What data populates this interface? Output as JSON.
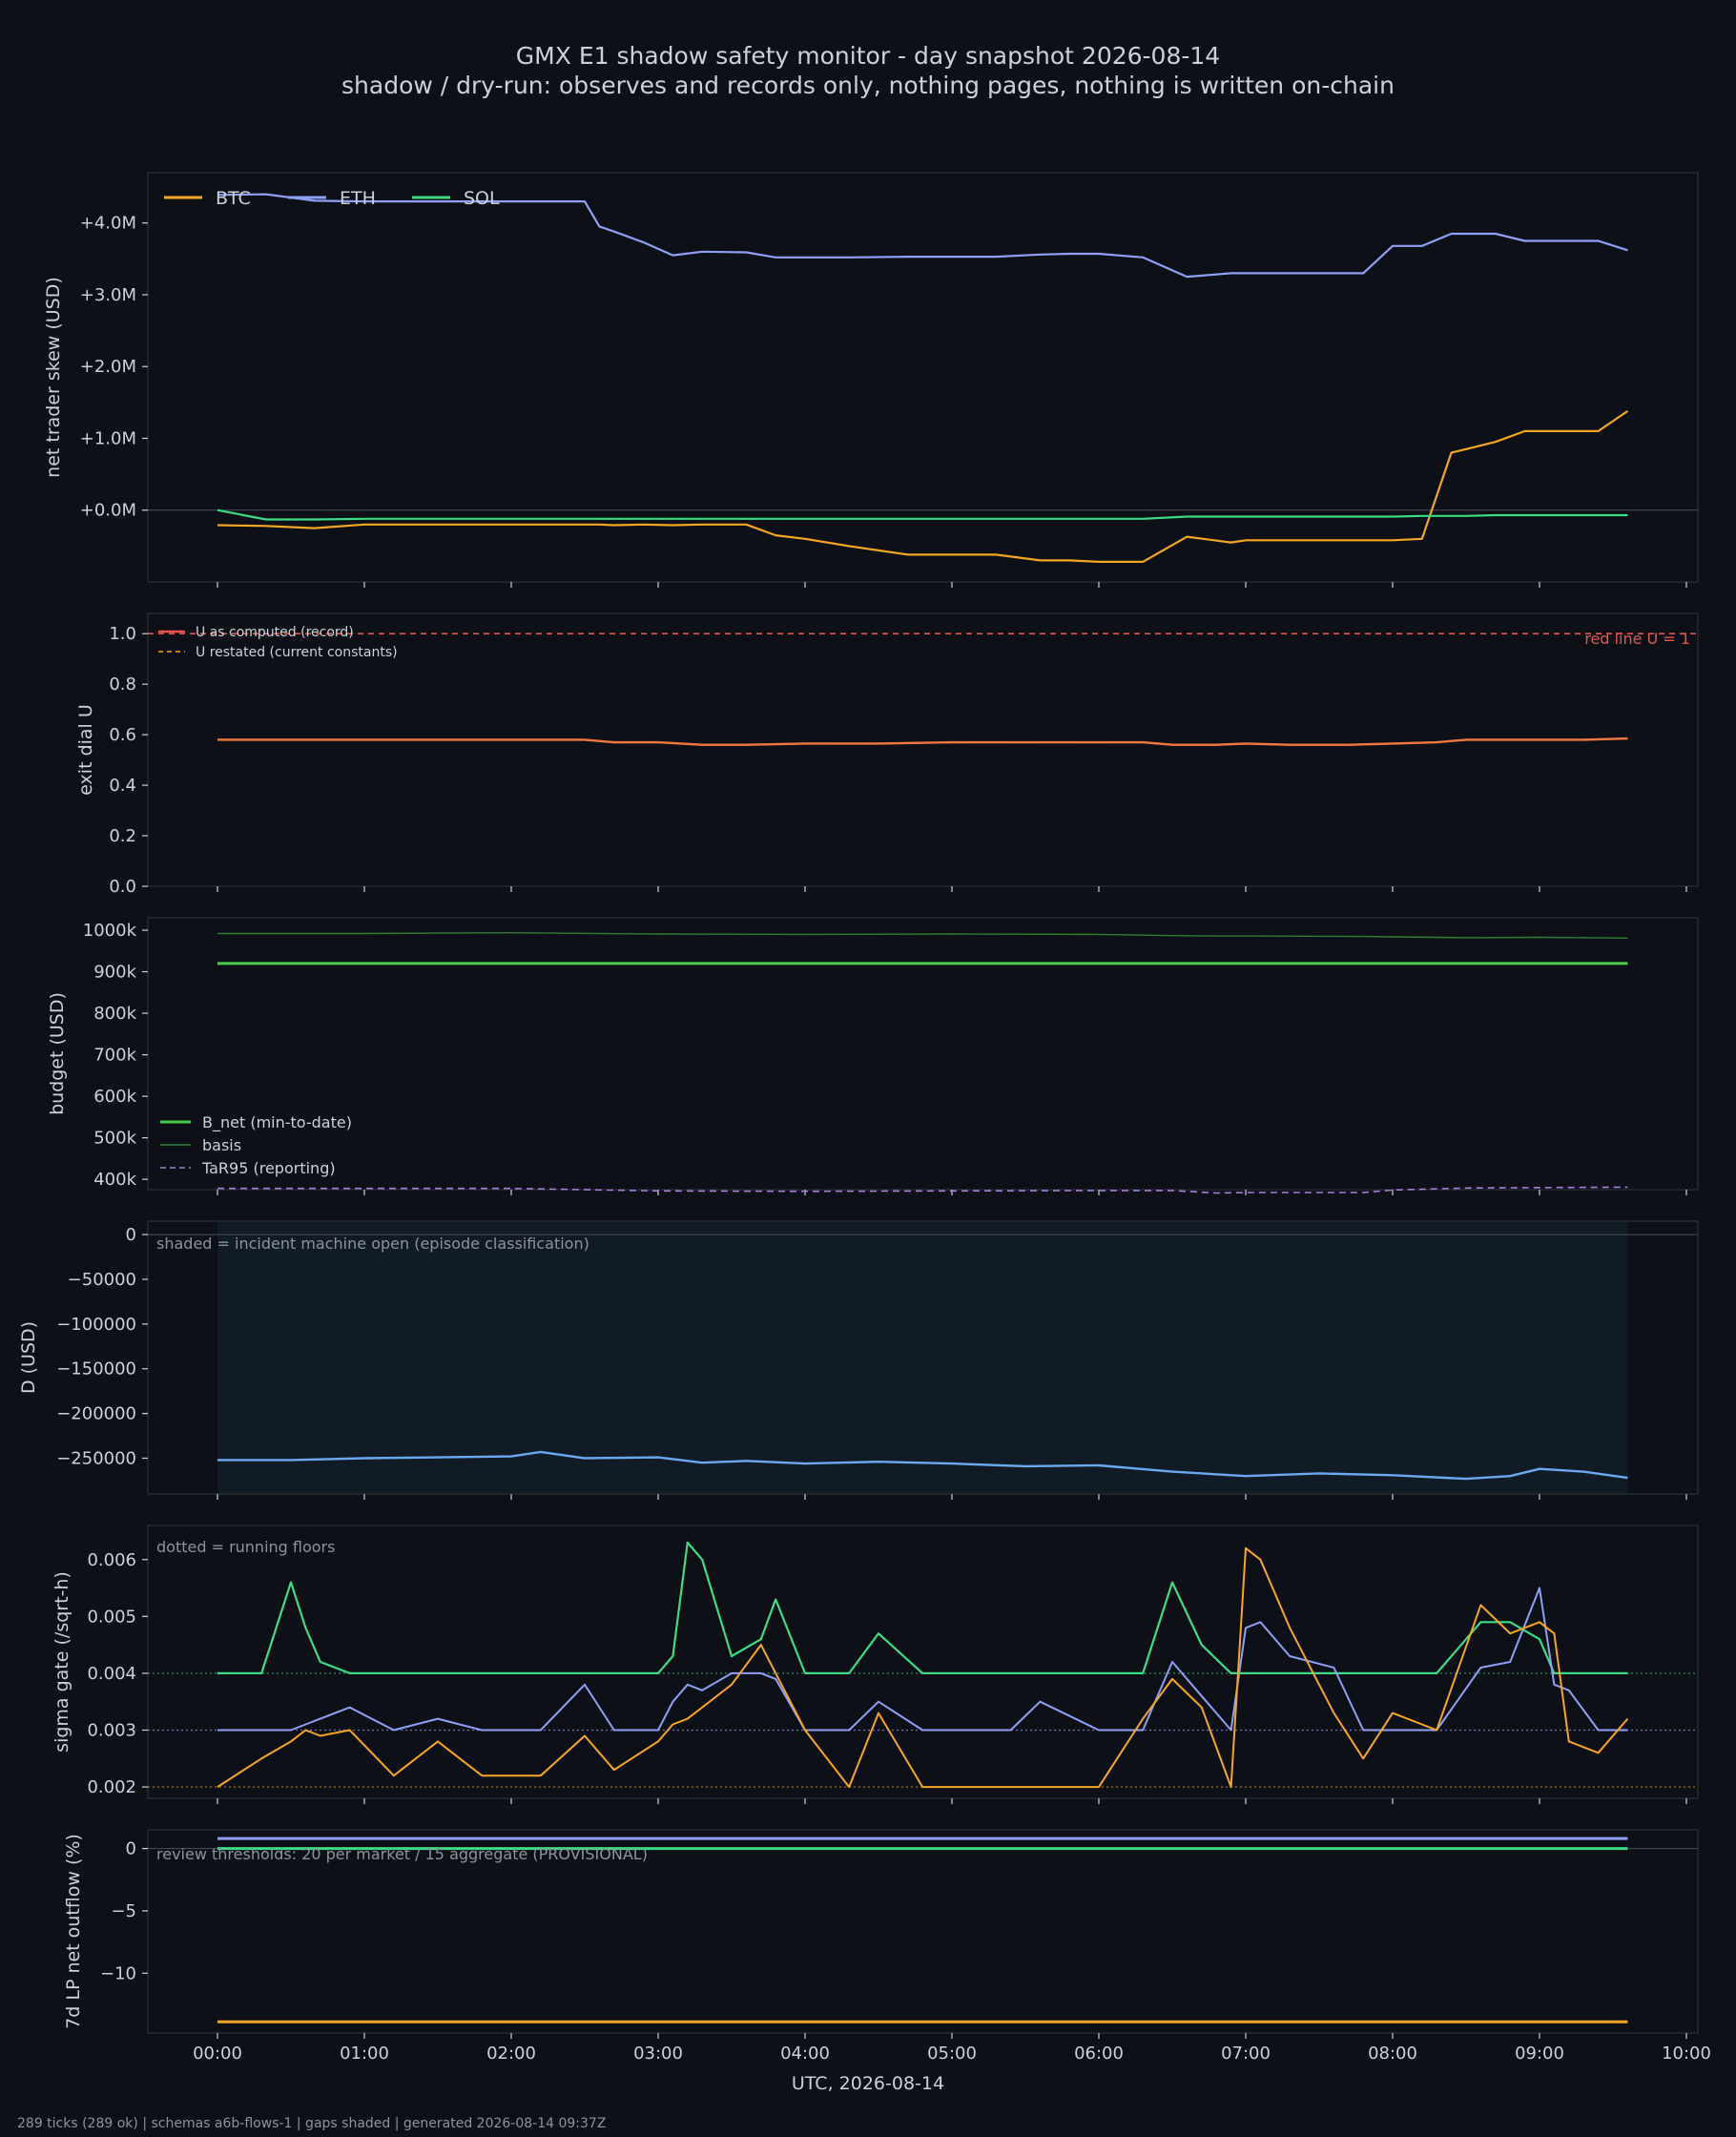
{
  "title": "GMX E1 shadow safety monitor - day snapshot 2026-08-14",
  "subtitle": "shadow / dry-run: observes and records only, nothing pages, nothing is written on-chain",
  "xlabel": "UTC, 2026-08-14",
  "footer": "289 ticks (289 ok) | schemas a6b-flows-1 | gaps shaded | generated 2026-08-14 09:37Z",
  "x_ticks": [
    "00:00",
    "01:00",
    "02:00",
    "03:00",
    "04:00",
    "05:00",
    "06:00",
    "07:00",
    "08:00",
    "09:00",
    "10:00"
  ],
  "colors": {
    "background": "#0d1117",
    "btc": "#f5a623",
    "eth": "#8f9ff5",
    "sol": "#3ddc84",
    "red": "#e5534b",
    "bnet": "#4ccc4c",
    "basis": "#2e7d32",
    "tar": "#a57fd8",
    "d": "#6aa9f0"
  },
  "chart_data": [
    {
      "type": "line",
      "ylabel": "net trader skew (USD)",
      "y_ticks": [
        "+0.0M",
        "+1.0M",
        "+2.0M",
        "+3.0M",
        "+4.0M"
      ],
      "ylim": [
        -1.0,
        4.7
      ],
      "legend": "top-left",
      "x_hours": [
        0.0,
        0.33,
        0.66,
        1.0,
        1.5,
        2.0,
        2.5,
        2.6,
        2.7,
        2.9,
        3.1,
        3.3,
        3.6,
        3.8,
        4.0,
        4.3,
        4.7,
        5.0,
        5.3,
        5.6,
        5.8,
        6.0,
        6.3,
        6.6,
        6.9,
        7.0,
        7.3,
        7.6,
        7.8,
        8.0,
        8.2,
        8.4,
        8.5,
        8.7,
        8.9,
        9.1,
        9.4,
        9.6
      ],
      "series": [
        {
          "name": "BTC",
          "values": [
            -0.21,
            -0.22,
            -0.25,
            -0.2,
            -0.2,
            -0.2,
            -0.2,
            -0.2,
            -0.21,
            -0.2,
            -0.21,
            -0.2,
            -0.2,
            -0.35,
            -0.4,
            -0.5,
            -0.62,
            -0.62,
            -0.62,
            -0.7,
            -0.7,
            -0.72,
            -0.72,
            -0.37,
            -0.45,
            -0.42,
            -0.42,
            -0.42,
            -0.42,
            -0.42,
            -0.4,
            0.8,
            0.85,
            0.95,
            1.1,
            1.1,
            1.1,
            1.38
          ]
        },
        {
          "name": "ETH",
          "values": [
            4.39,
            4.4,
            4.31,
            4.3,
            4.3,
            4.3,
            4.3,
            3.95,
            3.88,
            3.73,
            3.55,
            3.6,
            3.59,
            3.52,
            3.52,
            3.52,
            3.53,
            3.53,
            3.53,
            3.56,
            3.57,
            3.57,
            3.52,
            3.25,
            3.3,
            3.3,
            3.3,
            3.3,
            3.3,
            3.68,
            3.68,
            3.85,
            3.85,
            3.85,
            3.75,
            3.75,
            3.75,
            3.62
          ]
        },
        {
          "name": "SOL",
          "values": [
            0.0,
            -0.13,
            -0.13,
            -0.12,
            -0.12,
            -0.12,
            -0.12,
            -0.12,
            -0.12,
            -0.12,
            -0.12,
            -0.12,
            -0.12,
            -0.12,
            -0.12,
            -0.12,
            -0.12,
            -0.12,
            -0.12,
            -0.12,
            -0.12,
            -0.12,
            -0.12,
            -0.09,
            -0.09,
            -0.09,
            -0.09,
            -0.09,
            -0.09,
            -0.09,
            -0.08,
            -0.08,
            -0.08,
            -0.07,
            -0.07,
            -0.07,
            -0.07,
            -0.07
          ]
        }
      ]
    },
    {
      "type": "line",
      "ylabel": "exit dial U",
      "y_ticks": [
        "0.0",
        "0.2",
        "0.4",
        "0.6",
        "0.8",
        "1.0"
      ],
      "ylim": [
        0.0,
        1.08
      ],
      "legend": "top-left",
      "hline_label": "red line U = 1",
      "x_hours": [
        0.0,
        0.5,
        1.0,
        1.5,
        2.0,
        2.5,
        2.7,
        3.0,
        3.3,
        3.6,
        4.0,
        4.5,
        5.0,
        5.5,
        6.0,
        6.3,
        6.5,
        6.8,
        7.0,
        7.3,
        7.7,
        8.0,
        8.3,
        8.5,
        8.8,
        9.0,
        9.3,
        9.6
      ],
      "series": [
        {
          "name": "U as computed (record)",
          "values": [
            0.58,
            0.58,
            0.58,
            0.58,
            0.58,
            0.58,
            0.57,
            0.57,
            0.56,
            0.56,
            0.565,
            0.565,
            0.57,
            0.57,
            0.57,
            0.57,
            0.56,
            0.56,
            0.565,
            0.56,
            0.56,
            0.565,
            0.57,
            0.58,
            0.58,
            0.58,
            0.58,
            0.585
          ]
        },
        {
          "name": "U restated (current constants)",
          "values": [
            0.58,
            0.58,
            0.58,
            0.58,
            0.58,
            0.58,
            0.57,
            0.57,
            0.56,
            0.56,
            0.565,
            0.565,
            0.57,
            0.57,
            0.57,
            0.57,
            0.56,
            0.56,
            0.565,
            0.56,
            0.56,
            0.565,
            0.57,
            0.58,
            0.58,
            0.58,
            0.58,
            0.585
          ]
        }
      ]
    },
    {
      "type": "line",
      "ylabel": "budget (USD)",
      "y_ticks": [
        "400k",
        "500k",
        "600k",
        "700k",
        "800k",
        "900k",
        "1000k"
      ],
      "ylim": [
        375000,
        1030000
      ],
      "legend": "bottom-left",
      "x_hours": [
        0.0,
        1.0,
        2.0,
        3.0,
        4.0,
        5.0,
        6.0,
        6.5,
        6.8,
        7.0,
        7.8,
        8.0,
        8.5,
        9.0,
        9.6
      ],
      "series": [
        {
          "name": "B_net (min-to-date)",
          "values": [
            920000,
            920000,
            920000,
            920000,
            920000,
            920000,
            920000,
            920000,
            920000,
            920000,
            920000,
            920000,
            920000,
            920000,
            920000
          ]
        },
        {
          "name": "basis",
          "values": [
            992000,
            992000,
            994000,
            991000,
            990000,
            991000,
            990000,
            987000,
            986000,
            986000,
            985000,
            984000,
            982000,
            983000,
            981000
          ]
        },
        {
          "name": "TaR95 (reporting)",
          "values": [
            378000,
            378000,
            378000,
            372000,
            371000,
            372000,
            373000,
            373000,
            367000,
            368000,
            368000,
            374000,
            379000,
            380000,
            381000
          ]
        }
      ]
    },
    {
      "type": "line",
      "ylabel": "D (USD)",
      "y_ticks": [
        "0",
        "−50000",
        "−100000",
        "−150000",
        "−200000",
        "−250000"
      ],
      "ylim": [
        -290000,
        15000
      ],
      "note": "shaded = incident machine open (episode classification)",
      "shaded_range_hours": [
        0.0,
        9.6
      ],
      "x_hours": [
        0.0,
        0.5,
        1.0,
        1.5,
        2.0,
        2.2,
        2.5,
        3.0,
        3.3,
        3.6,
        4.0,
        4.5,
        5.0,
        5.5,
        6.0,
        6.5,
        7.0,
        7.5,
        8.0,
        8.5,
        8.8,
        9.0,
        9.3,
        9.6
      ],
      "series": [
        {
          "name": "D",
          "values": [
            -252000,
            -252000,
            -250000,
            -249000,
            -248000,
            -243000,
            -250000,
            -249000,
            -255000,
            -253000,
            -256000,
            -254000,
            -256000,
            -259000,
            -258000,
            -265000,
            -270000,
            -267000,
            -269000,
            -273000,
            -270000,
            -262000,
            -265000,
            -272000
          ]
        }
      ]
    },
    {
      "type": "line",
      "ylabel": "sigma gate (/sqrt-h)",
      "y_ticks": [
        "0.002",
        "0.003",
        "0.004",
        "0.005",
        "0.006"
      ],
      "ylim": [
        0.0018,
        0.0066
      ],
      "note": "dotted = running floors",
      "floors": {
        "sol": 0.004,
        "eth": 0.003,
        "btc": 0.002
      },
      "x_hours": [
        0.0,
        0.3,
        0.5,
        0.6,
        0.7,
        0.9,
        1.2,
        1.5,
        1.8,
        2.2,
        2.5,
        2.7,
        3.0,
        3.1,
        3.2,
        3.3,
        3.5,
        3.7,
        3.8,
        4.0,
        4.3,
        4.5,
        4.8,
        5.0,
        5.4,
        5.6,
        6.0,
        6.3,
        6.5,
        6.7,
        6.9,
        7.0,
        7.1,
        7.3,
        7.6,
        7.8,
        8.0,
        8.3,
        8.6,
        8.8,
        9.0,
        9.1,
        9.2,
        9.4,
        9.6
      ],
      "series": [
        {
          "name": "BTC",
          "values": [
            0.002,
            0.0025,
            0.0028,
            0.003,
            0.0029,
            0.003,
            0.0022,
            0.0028,
            0.0022,
            0.0022,
            0.0029,
            0.0023,
            0.0028,
            0.0031,
            0.0032,
            0.0034,
            0.0038,
            0.0045,
            0.004,
            0.003,
            0.002,
            0.0033,
            0.002,
            0.002,
            0.002,
            0.002,
            0.002,
            0.0032,
            0.0039,
            0.0034,
            0.002,
            0.0062,
            0.006,
            0.0048,
            0.0033,
            0.0025,
            0.0033,
            0.003,
            0.0052,
            0.0047,
            0.0049,
            0.0047,
            0.0028,
            0.0026,
            0.0032
          ]
        },
        {
          "name": "ETH",
          "values": [
            0.003,
            0.003,
            0.003,
            0.0031,
            0.0032,
            0.0034,
            0.003,
            0.0032,
            0.003,
            0.003,
            0.0038,
            0.003,
            0.003,
            0.0035,
            0.0038,
            0.0037,
            0.004,
            0.004,
            0.0039,
            0.003,
            0.003,
            0.0035,
            0.003,
            0.003,
            0.003,
            0.0035,
            0.003,
            0.003,
            0.0042,
            0.0036,
            0.003,
            0.0048,
            0.0049,
            0.0043,
            0.0041,
            0.003,
            0.003,
            0.003,
            0.0041,
            0.0042,
            0.0055,
            0.0038,
            0.0037,
            0.003,
            0.003
          ]
        },
        {
          "name": "SOL",
          "values": [
            0.004,
            0.004,
            0.0056,
            0.0048,
            0.0042,
            0.004,
            0.004,
            0.004,
            0.004,
            0.004,
            0.004,
            0.004,
            0.004,
            0.0043,
            0.0063,
            0.006,
            0.0043,
            0.0046,
            0.0053,
            0.004,
            0.004,
            0.0047,
            0.004,
            0.004,
            0.004,
            0.004,
            0.004,
            0.004,
            0.0056,
            0.0045,
            0.004,
            0.004,
            0.004,
            0.004,
            0.004,
            0.004,
            0.004,
            0.004,
            0.0049,
            0.0049,
            0.0046,
            0.004,
            0.004,
            0.004,
            0.004
          ]
        }
      ]
    },
    {
      "type": "line",
      "ylabel": "7d LP net outflow (%)",
      "y_ticks": [
        "−10",
        "−5",
        "0"
      ],
      "ylim": [
        -14.8,
        1.5
      ],
      "note": "review thresholds: 20 per market / 15 aggregate (PROVISIONAL)",
      "x_hours": [
        0.0,
        9.6
      ],
      "series": [
        {
          "name": "ETH",
          "values": [
            0.8,
            0.8
          ]
        },
        {
          "name": "SOL",
          "values": [
            0.0,
            0.0
          ]
        },
        {
          "name": "BTC",
          "values": [
            -13.9,
            -13.9
          ]
        }
      ]
    }
  ]
}
